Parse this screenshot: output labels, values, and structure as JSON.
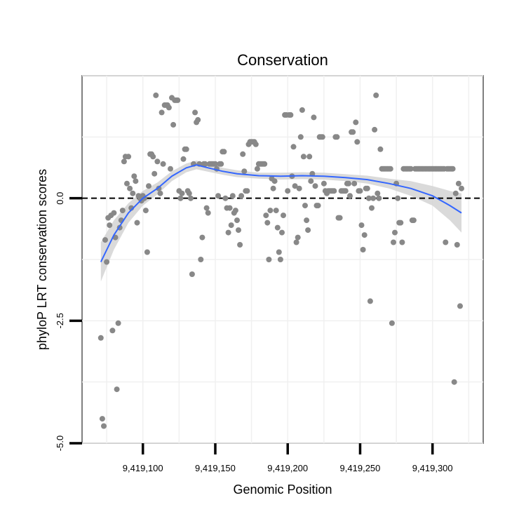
{
  "chart_data": {
    "type": "scatter",
    "title": "Conservation",
    "xlabel": "Genomic Position",
    "ylabel": "phyloP LRT conservation scores",
    "xlim": [
      9419058,
      9419335
    ],
    "ylim": [
      -5.0,
      2.5
    ],
    "x_ticks": [
      9419100,
      9419150,
      9419200,
      9419250,
      9419300
    ],
    "x_tick_labels": [
      "9,419,100",
      "9,419,150",
      "9,419,200",
      "9,419,250",
      "9,419,300"
    ],
    "y_ticks": [
      0.0,
      -2.5,
      -5.0
    ],
    "y_tick_labels": [
      "0.0",
      "-2.5",
      "-5.0"
    ],
    "reference_line": {
      "y": 0.0,
      "style": "dashed",
      "color": "#000000"
    },
    "grid": true,
    "points": [
      [
        9419071,
        -2.85
      ],
      [
        9419072,
        -4.5
      ],
      [
        9419073,
        -4.65
      ],
      [
        9419074,
        -0.85
      ],
      [
        9419075,
        -1.3
      ],
      [
        9419076,
        -0.4
      ],
      [
        9419077,
        -0.55
      ],
      [
        9419078,
        -0.35
      ],
      [
        9419079,
        -2.7
      ],
      [
        9419080,
        -0.3
      ],
      [
        9419081,
        -0.8
      ],
      [
        9419082,
        -3.9
      ],
      [
        9419083,
        -2.55
      ],
      [
        9419084,
        -0.6
      ],
      [
        9419085,
        -0.45
      ],
      [
        9419086,
        -0.25
      ],
      [
        9419087,
        0.75
      ],
      [
        9419088,
        0.85
      ],
      [
        9419089,
        0.3
      ],
      [
        9419090,
        0.85
      ],
      [
        9419091,
        0.2
      ],
      [
        9419092,
        -0.2
      ],
      [
        9419093,
        0.1
      ],
      [
        9419094,
        0.45
      ],
      [
        9419095,
        0.35
      ],
      [
        9419096,
        -0.5
      ],
      [
        9419097,
        0.05
      ],
      [
        9419098,
        0.0
      ],
      [
        9419099,
        -0.05
      ],
      [
        9419100,
        0.05
      ],
      [
        9419101,
        0.0
      ],
      [
        9419102,
        -0.25
      ],
      [
        9419103,
        -1.1
      ],
      [
        9419104,
        0.25
      ],
      [
        9419105,
        0.9
      ],
      [
        9419106,
        0.9
      ],
      [
        9419107,
        0.85
      ],
      [
        9419108,
        0.5
      ],
      [
        9419109,
        2.1
      ],
      [
        9419110,
        0.75
      ],
      [
        9419111,
        0.2
      ],
      [
        9419112,
        0.1
      ],
      [
        9419113,
        1.75
      ],
      [
        9419114,
        0.7
      ],
      [
        9419115,
        1.9
      ],
      [
        9419116,
        1.9
      ],
      [
        9419117,
        1.9
      ],
      [
        9419118,
        1.85
      ],
      [
        9419119,
        0.6
      ],
      [
        9419120,
        2.05
      ],
      [
        9419121,
        1.5
      ],
      [
        9419122,
        2.0
      ],
      [
        9419123,
        2.0
      ],
      [
        9419124,
        2.0
      ],
      [
        9419125,
        0.15
      ],
      [
        9419126,
        0.0
      ],
      [
        9419127,
        0.1
      ],
      [
        9419128,
        0.8
      ],
      [
        9419129,
        1.0
      ],
      [
        9419130,
        1.0
      ],
      [
        9419131,
        0.15
      ],
      [
        9419132,
        0.1
      ],
      [
        9419133,
        0.0
      ],
      [
        9419134,
        -1.55
      ],
      [
        9419135,
        0.7
      ],
      [
        9419136,
        1.75
      ],
      [
        9419137,
        1.55
      ],
      [
        9419138,
        1.6
      ],
      [
        9419139,
        0.7
      ],
      [
        9419140,
        -1.25
      ],
      [
        9419141,
        -0.8
      ],
      [
        9419142,
        0.7
      ],
      [
        9419143,
        0.7
      ],
      [
        9419144,
        -0.2
      ],
      [
        9419145,
        -0.3
      ],
      [
        9419146,
        0.7
      ],
      [
        9419147,
        0.7
      ],
      [
        9419148,
        0.7
      ],
      [
        9419149,
        0.7
      ],
      [
        9419150,
        0.7
      ],
      [
        9419151,
        0.6
      ],
      [
        9419152,
        0.05
      ],
      [
        9419153,
        0.7
      ],
      [
        9419154,
        0.7
      ],
      [
        9419155,
        0.95
      ],
      [
        9419156,
        0.95
      ],
      [
        9419157,
        0.0
      ],
      [
        9419158,
        -0.2
      ],
      [
        9419159,
        -0.7
      ],
      [
        9419160,
        -0.2
      ],
      [
        9419161,
        -0.55
      ],
      [
        9419162,
        0.05
      ],
      [
        9419163,
        -0.3
      ],
      [
        9419164,
        -0.25
      ],
      [
        9419165,
        -0.45
      ],
      [
        9419166,
        -0.65
      ],
      [
        9419167,
        -0.95
      ],
      [
        9419168,
        0.05
      ],
      [
        9419169,
        0.9
      ],
      [
        9419170,
        0.55
      ],
      [
        9419171,
        0.15
      ],
      [
        9419172,
        0.15
      ],
      [
        9419173,
        1.1
      ],
      [
        9419174,
        1.15
      ],
      [
        9419175,
        1.15
      ],
      [
        9419176,
        1.15
      ],
      [
        9419177,
        1.15
      ],
      [
        9419178,
        1.1
      ],
      [
        9419179,
        0.6
      ],
      [
        9419180,
        0.7
      ],
      [
        9419181,
        0.7
      ],
      [
        9419182,
        0.7
      ],
      [
        9419183,
        0.7
      ],
      [
        9419184,
        0.7
      ],
      [
        9419185,
        -0.35
      ],
      [
        9419186,
        -0.5
      ],
      [
        9419187,
        -1.25
      ],
      [
        9419188,
        -0.25
      ],
      [
        9419189,
        0.4
      ],
      [
        9419190,
        0.2
      ],
      [
        9419191,
        0.35
      ],
      [
        9419192,
        -0.25
      ],
      [
        9419193,
        -0.6
      ],
      [
        9419194,
        -1.1
      ],
      [
        9419195,
        -1.25
      ],
      [
        9419196,
        -0.7
      ],
      [
        9419197,
        -0.35
      ],
      [
        9419198,
        1.7
      ],
      [
        9419199,
        1.7
      ],
      [
        9419200,
        0.15
      ],
      [
        9419201,
        1.7
      ],
      [
        9419202,
        1.7
      ],
      [
        9419203,
        0.45
      ],
      [
        9419204,
        1.05
      ],
      [
        9419205,
        0.25
      ],
      [
        9419206,
        -0.9
      ],
      [
        9419207,
        -0.8
      ],
      [
        9419208,
        0.2
      ],
      [
        9419209,
        1.25
      ],
      [
        9419210,
        1.8
      ],
      [
        9419211,
        0.85
      ],
      [
        9419212,
        -0.15
      ],
      [
        9419213,
        -0.45
      ],
      [
        9419214,
        -0.65
      ],
      [
        9419215,
        0.85
      ],
      [
        9419216,
        0.35
      ],
      [
        9419217,
        0.5
      ],
      [
        9419218,
        1.65
      ],
      [
        9419219,
        0.25
      ],
      [
        9419220,
        -0.15
      ],
      [
        9419221,
        -0.15
      ],
      [
        9419222,
        1.25
      ],
      [
        9419223,
        1.25
      ],
      [
        9419224,
        1.25
      ],
      [
        9419225,
        0.3
      ],
      [
        9419226,
        0.15
      ],
      [
        9419227,
        0.1
      ],
      [
        9419228,
        0.15
      ],
      [
        9419229,
        0.15
      ],
      [
        9419230,
        0.15
      ],
      [
        9419231,
        0.15
      ],
      [
        9419232,
        0.15
      ],
      [
        9419233,
        1.25
      ],
      [
        9419234,
        1.25
      ],
      [
        9419235,
        -0.4
      ],
      [
        9419236,
        -0.4
      ],
      [
        9419237,
        0.15
      ],
      [
        9419238,
        0.15
      ],
      [
        9419239,
        0.15
      ],
      [
        9419240,
        0.15
      ],
      [
        9419241,
        0.3
      ],
      [
        9419242,
        0.3
      ],
      [
        9419243,
        0.05
      ],
      [
        9419244,
        1.35
      ],
      [
        9419245,
        1.35
      ],
      [
        9419246,
        0.3
      ],
      [
        9419247,
        1.55
      ],
      [
        9419248,
        1.15
      ],
      [
        9419249,
        0.15
      ],
      [
        9419250,
        0.15
      ],
      [
        9419251,
        -0.55
      ],
      [
        9419252,
        -1.05
      ],
      [
        9419253,
        -0.75
      ],
      [
        9419254,
        0.2
      ],
      [
        9419255,
        0.2
      ],
      [
        9419256,
        0.0
      ],
      [
        9419257,
        -2.1
      ],
      [
        9419258,
        -0.2
      ],
      [
        9419259,
        0.0
      ],
      [
        9419260,
        1.4
      ],
      [
        9419261,
        2.1
      ],
      [
        9419262,
        0.1
      ],
      [
        9419263,
        0.0
      ],
      [
        9419264,
        1.0
      ],
      [
        9419265,
        0.6
      ],
      [
        9419266,
        0.6
      ],
      [
        9419267,
        0.6
      ],
      [
        9419268,
        0.6
      ],
      [
        9419269,
        0.6
      ],
      [
        9419270,
        0.6
      ],
      [
        9419271,
        0.6
      ],
      [
        9419272,
        -2.55
      ],
      [
        9419273,
        -0.9
      ],
      [
        9419274,
        -0.7
      ],
      [
        9419275,
        0.3
      ],
      [
        9419276,
        0.0
      ],
      [
        9419277,
        -0.5
      ],
      [
        9419278,
        -0.5
      ],
      [
        9419279,
        -0.9
      ],
      [
        9419280,
        0.6
      ],
      [
        9419281,
        0.6
      ],
      [
        9419282,
        0.6
      ],
      [
        9419283,
        0.6
      ],
      [
        9419284,
        0.6
      ],
      [
        9419285,
        0.6
      ],
      [
        9419286,
        -0.45
      ],
      [
        9419287,
        -0.45
      ],
      [
        9419288,
        0.6
      ],
      [
        9419289,
        0.6
      ],
      [
        9419290,
        0.6
      ],
      [
        9419291,
        0.6
      ],
      [
        9419292,
        0.6
      ],
      [
        9419293,
        0.6
      ],
      [
        9419294,
        0.6
      ],
      [
        9419295,
        0.6
      ],
      [
        9419296,
        0.6
      ],
      [
        9419297,
        0.6
      ],
      [
        9419298,
        0.6
      ],
      [
        9419299,
        0.6
      ],
      [
        9419300,
        0.6
      ],
      [
        9419301,
        0.6
      ],
      [
        9419302,
        0.6
      ],
      [
        9419303,
        0.6
      ],
      [
        9419304,
        0.6
      ],
      [
        9419305,
        0.6
      ],
      [
        9419306,
        0.6
      ],
      [
        9419307,
        0.6
      ],
      [
        9419308,
        0.6
      ],
      [
        9419309,
        -0.9
      ],
      [
        9419310,
        0.6
      ],
      [
        9419311,
        0.6
      ],
      [
        9419312,
        0.6
      ],
      [
        9419313,
        0.6
      ],
      [
        9419314,
        0.6
      ],
      [
        9419315,
        -3.75
      ],
      [
        9419316,
        0.1
      ],
      [
        9419317,
        -0.95
      ],
      [
        9419318,
        0.3
      ],
      [
        9419319,
        -2.2
      ],
      [
        9419320,
        0.2
      ]
    ],
    "smooth": {
      "method": "loess",
      "color": "#3366ff",
      "band_color": "#d3d3d3",
      "x": [
        9419071,
        9419080,
        9419090,
        9419100,
        9419110,
        9419120,
        9419130,
        9419137,
        9419145,
        9419155,
        9419165,
        9419180,
        9419195,
        9419210,
        9419225,
        9419240,
        9419255,
        9419270,
        9419285,
        9419300,
        9419312,
        9419320
      ],
      "y": [
        -1.3,
        -0.75,
        -0.3,
        0.0,
        0.2,
        0.45,
        0.62,
        0.68,
        0.62,
        0.55,
        0.5,
        0.46,
        0.45,
        0.46,
        0.45,
        0.42,
        0.38,
        0.3,
        0.2,
        0.05,
        -0.15,
        -0.3
      ],
      "lower": [
        -1.7,
        -1.05,
        -0.5,
        -0.15,
        0.08,
        0.35,
        0.53,
        0.59,
        0.54,
        0.48,
        0.43,
        0.4,
        0.38,
        0.39,
        0.38,
        0.35,
        0.3,
        0.2,
        0.05,
        -0.15,
        -0.45,
        -0.7
      ],
      "upper": [
        -0.9,
        -0.45,
        -0.1,
        0.15,
        0.32,
        0.55,
        0.71,
        0.77,
        0.7,
        0.62,
        0.57,
        0.52,
        0.52,
        0.53,
        0.52,
        0.49,
        0.46,
        0.4,
        0.35,
        0.25,
        0.15,
        0.1
      ]
    },
    "point_color": "#888888"
  }
}
